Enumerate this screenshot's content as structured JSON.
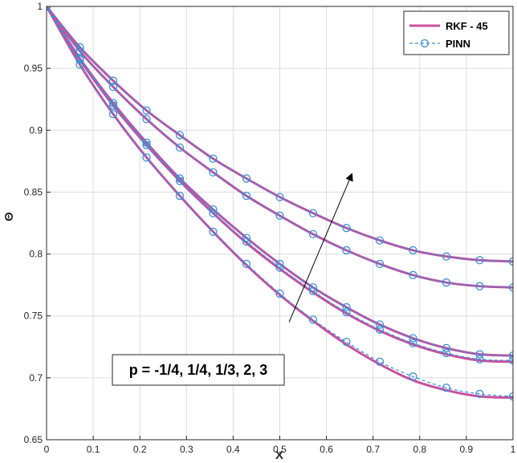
{
  "chart_data": {
    "type": "line",
    "xlabel": "X",
    "ylabel": "Θ",
    "xlim": [
      0,
      1
    ],
    "ylim": [
      0.65,
      1
    ],
    "xticks": [
      0,
      0.1,
      0.2,
      0.3,
      0.4,
      0.5,
      0.6,
      0.7,
      0.8,
      0.9,
      1
    ],
    "yticks": [
      0.65,
      0.7,
      0.75,
      0.8,
      0.85,
      0.9,
      0.95,
      1
    ],
    "xtick_labels": [
      "0",
      "0.1",
      "0.2",
      "0.3",
      "0.4",
      "0.5",
      "0.6",
      "0.7",
      "0.8",
      "0.9",
      "1"
    ],
    "ytick_labels": [
      "0.65",
      "0.7",
      "0.75",
      "0.8",
      "0.85",
      "0.9",
      "0.95",
      "1"
    ],
    "grid": true,
    "legend_position": "top-right",
    "legend": [
      {
        "label": "RKF - 45",
        "style": "solid",
        "color": "#c8509f"
      },
      {
        "label": "PINN",
        "style": "dashed-circle",
        "color": "#3b8fd4"
      }
    ],
    "annotation": {
      "text": "p = -1/4, 1/4, 1/3, 2, 3",
      "arrow": {
        "from": [
          0.52,
          0.745
        ],
        "to": [
          0.655,
          0.865
        ]
      }
    },
    "x": [
      0,
      0.0714,
      0.1429,
      0.2143,
      0.2857,
      0.3571,
      0.4286,
      0.5,
      0.5714,
      0.6429,
      0.7143,
      0.7857,
      0.8571,
      0.9286,
      1
    ],
    "series": [
      {
        "rkf": [
          1,
          0.953,
          0.913,
          0.878,
          0.847,
          0.818,
          0.791,
          0.767,
          0.746,
          0.727,
          0.711,
          0.698,
          0.69,
          0.685,
          0.684
        ],
        "pinn": [
          1,
          0.953,
          0.913,
          0.878,
          0.847,
          0.818,
          0.792,
          0.768,
          0.747,
          0.729,
          0.713,
          0.701,
          0.692,
          0.687,
          0.685
        ]
      },
      {
        "rkf": [
          1,
          0.957,
          0.92,
          0.888,
          0.859,
          0.833,
          0.809,
          0.788,
          0.769,
          0.752,
          0.738,
          0.727,
          0.719,
          0.714,
          0.713
        ],
        "pinn": [
          1,
          0.957,
          0.92,
          0.888,
          0.859,
          0.833,
          0.81,
          0.789,
          0.77,
          0.753,
          0.739,
          0.728,
          0.72,
          0.715,
          0.714
        ]
      },
      {
        "rkf": [
          1,
          0.958,
          0.922,
          0.89,
          0.861,
          0.836,
          0.813,
          0.792,
          0.773,
          0.757,
          0.743,
          0.732,
          0.724,
          0.719,
          0.718
        ],
        "pinn": [
          1,
          0.958,
          0.922,
          0.89,
          0.861,
          0.836,
          0.813,
          0.792,
          0.773,
          0.757,
          0.743,
          0.732,
          0.724,
          0.719,
          0.718
        ]
      },
      {
        "rkf": [
          1,
          0.964,
          0.935,
          0.909,
          0.886,
          0.866,
          0.847,
          0.831,
          0.816,
          0.803,
          0.792,
          0.783,
          0.777,
          0.774,
          0.773
        ],
        "pinn": [
          1,
          0.964,
          0.935,
          0.909,
          0.886,
          0.866,
          0.847,
          0.831,
          0.816,
          0.803,
          0.792,
          0.783,
          0.777,
          0.774,
          0.773
        ]
      },
      {
        "rkf": [
          1,
          0.967,
          0.94,
          0.916,
          0.896,
          0.877,
          0.861,
          0.846,
          0.833,
          0.821,
          0.811,
          0.803,
          0.798,
          0.795,
          0.794
        ],
        "pinn": [
          1,
          0.967,
          0.94,
          0.916,
          0.896,
          0.877,
          0.861,
          0.846,
          0.833,
          0.821,
          0.811,
          0.803,
          0.798,
          0.795,
          0.794
        ]
      }
    ]
  }
}
